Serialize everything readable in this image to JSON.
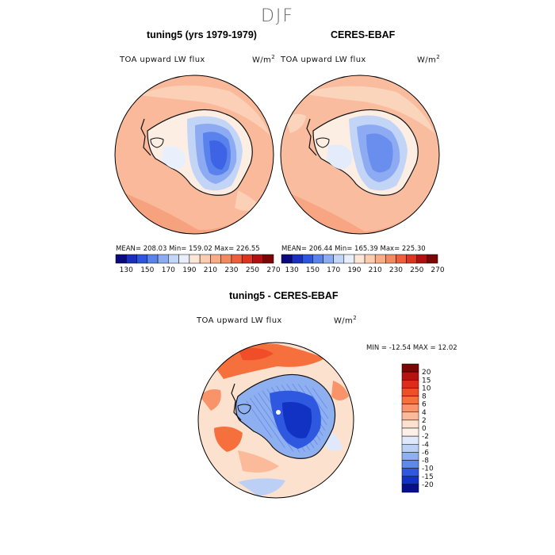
{
  "season": "DJF",
  "panels": {
    "model": {
      "title": "tuning5 (yrs 1979-1979)",
      "variable": "TOA upward LW flux",
      "units_base": "W/m",
      "units_exp": "2",
      "stats": "MEAN= 208.03 Min= 159.02 Max= 226.55"
    },
    "obs": {
      "title": "CERES-EBAF",
      "variable": "TOA upward LW flux",
      "units_base": "W/m",
      "units_exp": "2",
      "stats": "MEAN= 206.44 Min= 165.39 Max= 225.30"
    },
    "diff": {
      "title": "tuning5 - CERES-EBAF",
      "variable": "TOA upward LW flux",
      "units_base": "W/m",
      "units_exp": "2",
      "stats": "MIN = -12.54 MAX = 12.02"
    }
  },
  "abs_colorbar": {
    "labels": [
      "130",
      "150",
      "170",
      "190",
      "210",
      "230",
      "250",
      "270"
    ],
    "colors": [
      "#0a0a80",
      "#1a2fc0",
      "#2e55e0",
      "#5a82ec",
      "#8cabf2",
      "#c2d6f7",
      "#e8eefb",
      "#fbe6d8",
      "#fbcdb0",
      "#f9ac88",
      "#f48860",
      "#ee5e3c",
      "#dc3322",
      "#b21010",
      "#7a0606"
    ]
  },
  "diff_colorbar": {
    "labels": [
      "20",
      "15",
      "10",
      "8",
      "6",
      "4",
      "2",
      "0",
      "-2",
      "-4",
      "-6",
      "-8",
      "-10",
      "-15",
      "-20"
    ],
    "colors": [
      "#7a0606",
      "#b81210",
      "#dd2c1c",
      "#f04e28",
      "#f6703e",
      "#f9946a",
      "#fbbb9a",
      "#fde1cf",
      "#fdf0e8",
      "#dfe9fb",
      "#bcd0f6",
      "#8fb0f0",
      "#5f88ea",
      "#2f58e0",
      "#1232c4",
      "#06108c"
    ]
  }
}
